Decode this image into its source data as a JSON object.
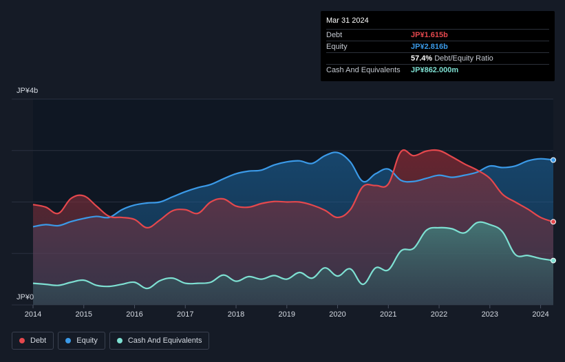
{
  "tooltip": {
    "date": "Mar 31 2024",
    "rows": [
      {
        "label": "Debt",
        "value": "JP¥1.615b",
        "color": "#e5484d"
      },
      {
        "label": "Equity",
        "value": "JP¥2.816b",
        "color": "#3b9ae8"
      },
      {
        "label": "",
        "value": "57.4%",
        "extra": "Debt/Equity Ratio",
        "color": "#ffffff"
      },
      {
        "label": "Cash And Equivalents",
        "value": "JP¥862.000m",
        "color": "#7ee0d2"
      }
    ]
  },
  "legend": [
    {
      "label": "Debt",
      "color": "#e5484d"
    },
    {
      "label": "Equity",
      "color": "#3b9ae8"
    },
    {
      "label": "Cash And Equivalents",
      "color": "#7ee0d2"
    }
  ],
  "chart_data": {
    "type": "area",
    "title": "",
    "xlabel": "",
    "ylabel": "",
    "y_unit": "JP¥ billions",
    "ylim": [
      0,
      4
    ],
    "xlim": [
      2014,
      2024.25
    ],
    "y_tick_labels": [
      {
        "value": 4,
        "label": "JP¥4b"
      },
      {
        "value": 0,
        "label": "JP¥0"
      }
    ],
    "x_ticks": [
      2014,
      2015,
      2016,
      2017,
      2018,
      2019,
      2020,
      2021,
      2022,
      2023,
      2024
    ],
    "grid": true,
    "series": [
      {
        "name": "Equity",
        "color": "#3b9ae8",
        "points": [
          [
            2014,
            1.52
          ],
          [
            2014.25,
            1.56
          ],
          [
            2014.5,
            1.54
          ],
          [
            2014.75,
            1.62
          ],
          [
            2015,
            1.68
          ],
          [
            2015.25,
            1.72
          ],
          [
            2015.5,
            1.7
          ],
          [
            2015.75,
            1.85
          ],
          [
            2016,
            1.94
          ],
          [
            2016.25,
            1.98
          ],
          [
            2016.5,
            2.0
          ],
          [
            2016.75,
            2.1
          ],
          [
            2017,
            2.2
          ],
          [
            2017.25,
            2.28
          ],
          [
            2017.5,
            2.34
          ],
          [
            2017.75,
            2.45
          ],
          [
            2018,
            2.55
          ],
          [
            2018.25,
            2.6
          ],
          [
            2018.5,
            2.62
          ],
          [
            2018.75,
            2.72
          ],
          [
            2019,
            2.78
          ],
          [
            2019.25,
            2.8
          ],
          [
            2019.5,
            2.75
          ],
          [
            2019.75,
            2.9
          ],
          [
            2020,
            2.96
          ],
          [
            2020.25,
            2.78
          ],
          [
            2020.5,
            2.4
          ],
          [
            2020.75,
            2.55
          ],
          [
            2021,
            2.64
          ],
          [
            2021.25,
            2.42
          ],
          [
            2021.5,
            2.4
          ],
          [
            2021.75,
            2.46
          ],
          [
            2022,
            2.52
          ],
          [
            2022.25,
            2.48
          ],
          [
            2022.5,
            2.52
          ],
          [
            2022.75,
            2.58
          ],
          [
            2023,
            2.7
          ],
          [
            2023.25,
            2.67
          ],
          [
            2023.5,
            2.7
          ],
          [
            2023.75,
            2.8
          ],
          [
            2024,
            2.84
          ],
          [
            2024.25,
            2.816
          ]
        ]
      },
      {
        "name": "Debt",
        "color": "#e5484d",
        "points": [
          [
            2014,
            1.95
          ],
          [
            2014.25,
            1.9
          ],
          [
            2014.5,
            1.78
          ],
          [
            2014.75,
            2.07
          ],
          [
            2015,
            2.12
          ],
          [
            2015.25,
            1.92
          ],
          [
            2015.5,
            1.72
          ],
          [
            2015.75,
            1.7
          ],
          [
            2016,
            1.66
          ],
          [
            2016.25,
            1.5
          ],
          [
            2016.5,
            1.65
          ],
          [
            2016.75,
            1.83
          ],
          [
            2017,
            1.85
          ],
          [
            2017.25,
            1.78
          ],
          [
            2017.5,
            2.0
          ],
          [
            2017.75,
            2.06
          ],
          [
            2018,
            1.92
          ],
          [
            2018.25,
            1.9
          ],
          [
            2018.5,
            1.97
          ],
          [
            2018.75,
            2.01
          ],
          [
            2019,
            2.0
          ],
          [
            2019.25,
            2.0
          ],
          [
            2019.5,
            1.94
          ],
          [
            2019.75,
            1.84
          ],
          [
            2020,
            1.7
          ],
          [
            2020.25,
            1.85
          ],
          [
            2020.5,
            2.3
          ],
          [
            2020.75,
            2.32
          ],
          [
            2021,
            2.35
          ],
          [
            2021.25,
            2.98
          ],
          [
            2021.5,
            2.9
          ],
          [
            2021.75,
            2.99
          ],
          [
            2022,
            3.0
          ],
          [
            2022.25,
            2.88
          ],
          [
            2022.5,
            2.74
          ],
          [
            2022.75,
            2.62
          ],
          [
            2023,
            2.46
          ],
          [
            2023.25,
            2.15
          ],
          [
            2023.5,
            2.0
          ],
          [
            2023.75,
            1.86
          ],
          [
            2024,
            1.7
          ],
          [
            2024.25,
            1.615
          ]
        ]
      },
      {
        "name": "Cash And Equivalents",
        "color": "#7ee0d2",
        "points": [
          [
            2014,
            0.42
          ],
          [
            2014.25,
            0.4
          ],
          [
            2014.5,
            0.38
          ],
          [
            2014.75,
            0.44
          ],
          [
            2015,
            0.48
          ],
          [
            2015.25,
            0.38
          ],
          [
            2015.5,
            0.36
          ],
          [
            2015.75,
            0.4
          ],
          [
            2016,
            0.44
          ],
          [
            2016.25,
            0.32
          ],
          [
            2016.5,
            0.47
          ],
          [
            2016.75,
            0.52
          ],
          [
            2017,
            0.42
          ],
          [
            2017.25,
            0.42
          ],
          [
            2017.5,
            0.44
          ],
          [
            2017.75,
            0.58
          ],
          [
            2018,
            0.46
          ],
          [
            2018.25,
            0.55
          ],
          [
            2018.5,
            0.5
          ],
          [
            2018.75,
            0.57
          ],
          [
            2019,
            0.5
          ],
          [
            2019.25,
            0.63
          ],
          [
            2019.5,
            0.52
          ],
          [
            2019.75,
            0.72
          ],
          [
            2020,
            0.56
          ],
          [
            2020.25,
            0.7
          ],
          [
            2020.5,
            0.4
          ],
          [
            2020.75,
            0.72
          ],
          [
            2021,
            0.68
          ],
          [
            2021.25,
            1.05
          ],
          [
            2021.5,
            1.1
          ],
          [
            2021.75,
            1.45
          ],
          [
            2022,
            1.5
          ],
          [
            2022.25,
            1.48
          ],
          [
            2022.5,
            1.4
          ],
          [
            2022.75,
            1.6
          ],
          [
            2023,
            1.56
          ],
          [
            2023.25,
            1.42
          ],
          [
            2023.5,
            0.98
          ],
          [
            2023.75,
            0.96
          ],
          [
            2024,
            0.9
          ],
          [
            2024.25,
            0.862
          ]
        ]
      }
    ]
  }
}
